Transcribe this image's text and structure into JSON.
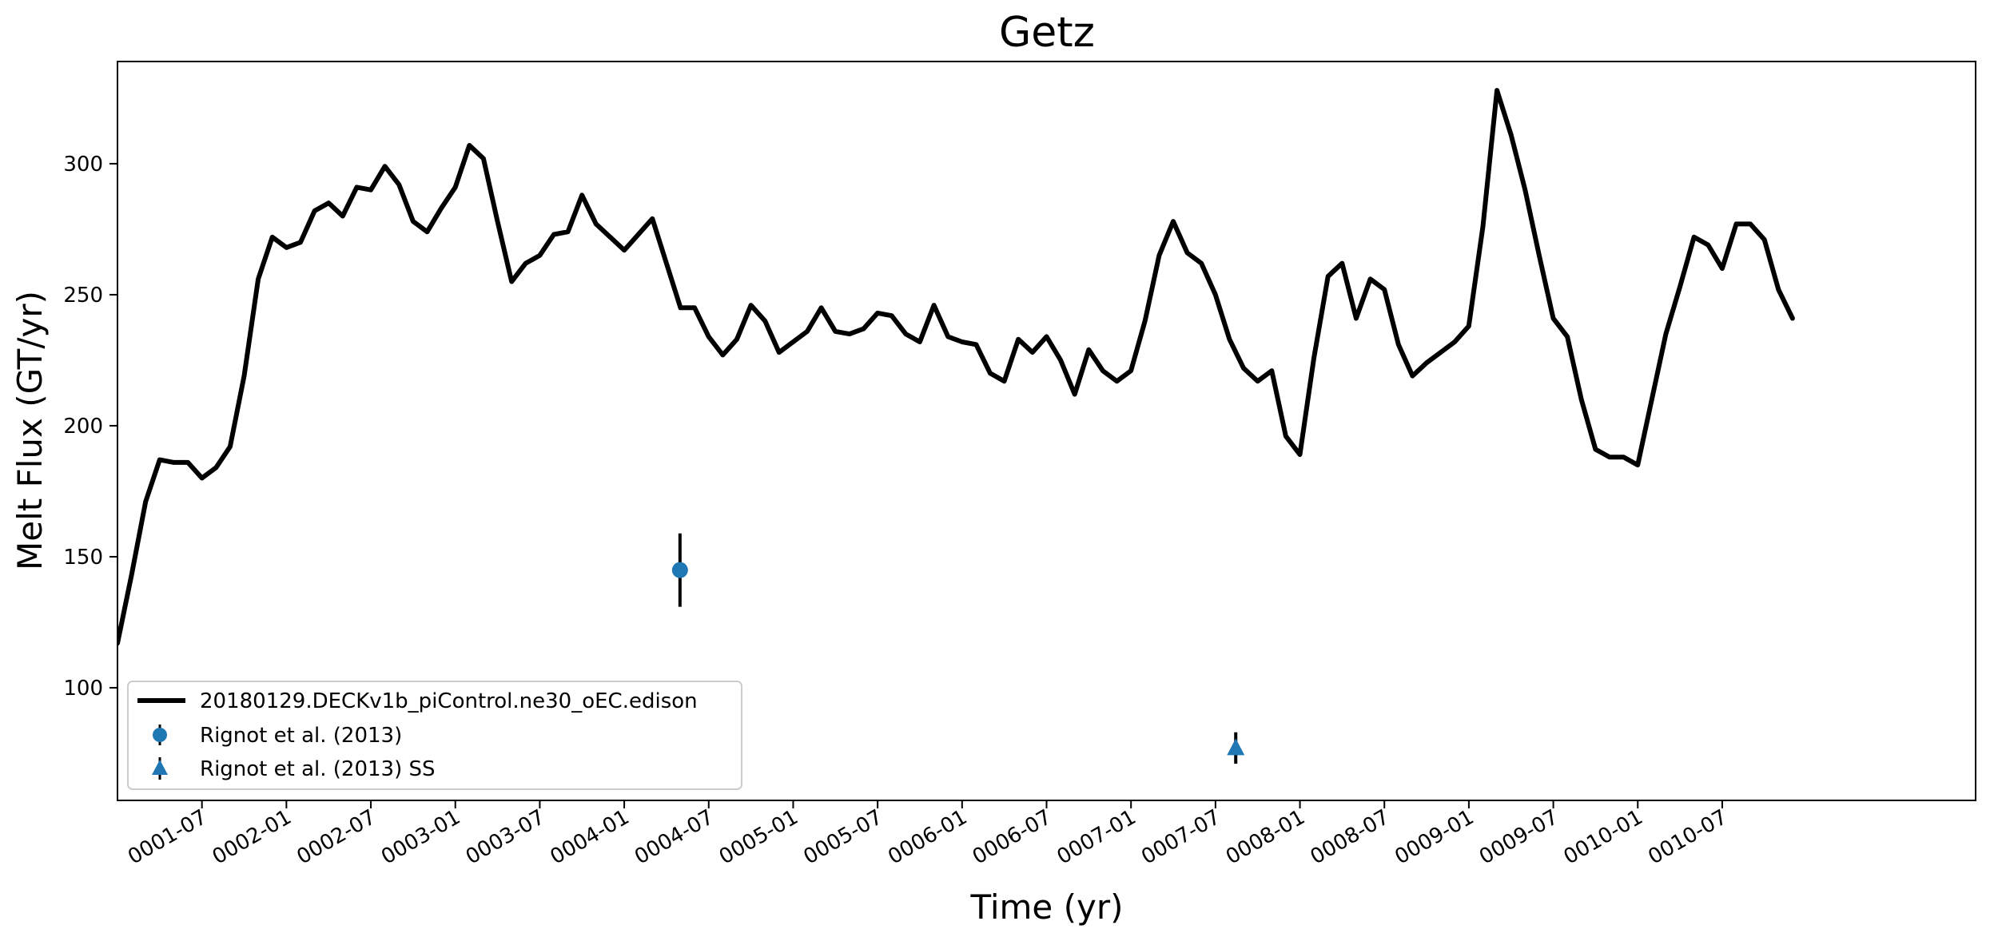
{
  "chart_data": {
    "type": "line",
    "title": "Getz",
    "xlabel": "Time (yr)",
    "ylabel": "Melt Flux (GT/yr)",
    "xlim": [
      0.0,
      11.0
    ],
    "ylim": [
      57,
      339
    ],
    "grid": false,
    "legend_position": "bottom-left",
    "x_ticks": [
      {
        "value": 0.5,
        "label": "0001-07"
      },
      {
        "value": 1.0,
        "label": "0002-01"
      },
      {
        "value": 1.5,
        "label": "0002-07"
      },
      {
        "value": 2.0,
        "label": "0003-01"
      },
      {
        "value": 2.5,
        "label": "0003-07"
      },
      {
        "value": 3.0,
        "label": "0004-01"
      },
      {
        "value": 3.5,
        "label": "0004-07"
      },
      {
        "value": 4.0,
        "label": "0005-01"
      },
      {
        "value": 4.5,
        "label": "0005-07"
      },
      {
        "value": 5.0,
        "label": "0006-01"
      },
      {
        "value": 5.5,
        "label": "0006-07"
      },
      {
        "value": 6.0,
        "label": "0007-01"
      },
      {
        "value": 6.5,
        "label": "0007-07"
      },
      {
        "value": 7.0,
        "label": "0008-01"
      },
      {
        "value": 7.5,
        "label": "0008-07"
      },
      {
        "value": 8.0,
        "label": "0009-01"
      },
      {
        "value": 8.5,
        "label": "0009-07"
      },
      {
        "value": 9.0,
        "label": "0010-01"
      },
      {
        "value": 9.5,
        "label": "0010-07"
      }
    ],
    "y_ticks": [
      100,
      150,
      200,
      250,
      300
    ],
    "series": [
      {
        "name": "20180129.DECKv1b_piControl.ne30_oEC.edison",
        "color": "#000000",
        "x_start": 0.0,
        "x_step": 0.08333,
        "values": [
          117,
          143,
          171,
          187,
          186,
          186,
          180,
          184,
          192,
          219,
          256,
          272,
          268,
          270,
          282,
          285,
          280,
          291,
          290,
          299,
          292,
          278,
          274,
          283,
          291,
          307,
          302,
          278,
          255,
          262,
          265,
          273,
          274,
          288,
          277,
          272,
          267,
          273,
          279,
          262,
          245,
          245,
          234,
          227,
          233,
          246,
          240,
          228,
          232,
          236,
          245,
          236,
          235,
          237,
          243,
          242,
          235,
          232,
          246,
          234,
          232,
          231,
          220,
          217,
          233,
          228,
          234,
          225,
          212,
          229,
          221,
          217,
          221,
          240,
          265,
          278,
          266,
          262,
          250,
          233,
          222,
          217,
          221,
          196,
          189,
          226,
          257,
          262,
          241,
          256,
          252,
          231,
          219,
          224,
          228,
          232,
          238,
          276,
          328,
          311,
          290,
          265,
          241,
          234,
          210,
          191,
          188,
          188,
          185,
          210,
          235,
          253,
          272,
          269,
          260,
          277,
          277,
          271,
          252,
          241
        ]
      }
    ],
    "observations": [
      {
        "name": "Rignot et al. (2013)",
        "x": 3.33,
        "y": 144.9,
        "yerr": 14,
        "marker": "circle",
        "color": "#1f77b4"
      },
      {
        "name": "Rignot et al. (2013) SS",
        "x": 6.62,
        "y": 77,
        "yerr": 6,
        "marker": "triangle",
        "color": "#1f77b4"
      }
    ]
  }
}
